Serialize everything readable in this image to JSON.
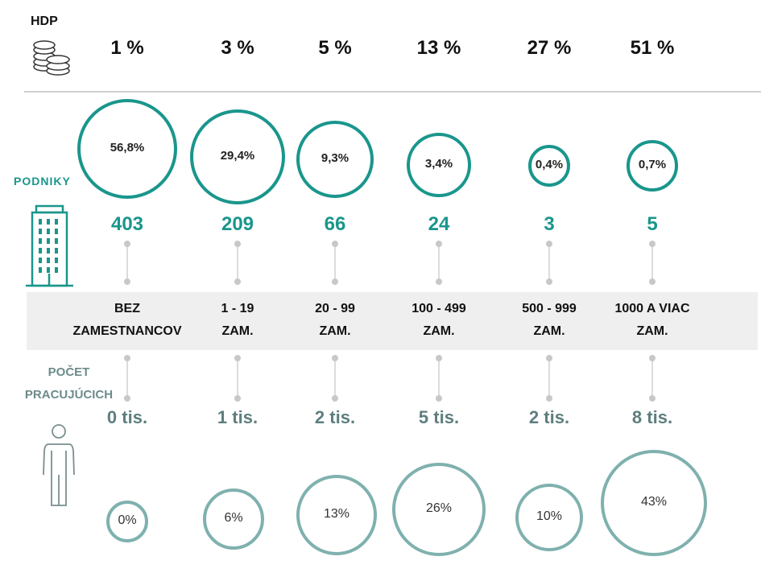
{
  "chart_data": {
    "type": "bubble-infographic",
    "categories": [
      {
        "line1": "BEZ",
        "line2": "ZAMESTNANCOV"
      },
      {
        "line1": "1 - 19",
        "line2": "ZAM."
      },
      {
        "line1": "20 - 99",
        "line2": "ZAM."
      },
      {
        "line1": "100 - 499",
        "line2": "ZAM."
      },
      {
        "line1": "500 - 999",
        "line2": "ZAM."
      },
      {
        "line1": "1000 A VIAC",
        "line2": "ZAM."
      }
    ],
    "hdp_label": "HDP",
    "hdp_values": [
      "1 %",
      "3 %",
      "5 %",
      "13 %",
      "27 %",
      "51 %"
    ],
    "podniky_label": "PODNIKY",
    "podniky_share": [
      "56,8%",
      "29,4%",
      "9,3%",
      "3,4%",
      "0,4%",
      "0,7%"
    ],
    "podniky_count": [
      "403",
      "209",
      "66",
      "24",
      "3",
      "5"
    ],
    "workers_label_line1": "POČET",
    "workers_label_line2": "PRACUJÚCICH",
    "workers_count": [
      "0 tis.",
      "1 tis.",
      "2 tis.",
      "5 tis.",
      "2 tis.",
      "8 tis."
    ],
    "workers_share": [
      "0%",
      "6%",
      "13%",
      "26%",
      "10%",
      "43%"
    ]
  },
  "colors": {
    "teal": "#1a968c",
    "light_teal": "#7fb1ae",
    "gray_teal": "#5e7e7f",
    "band": "#efefef",
    "dot": "#c8c8c8"
  }
}
